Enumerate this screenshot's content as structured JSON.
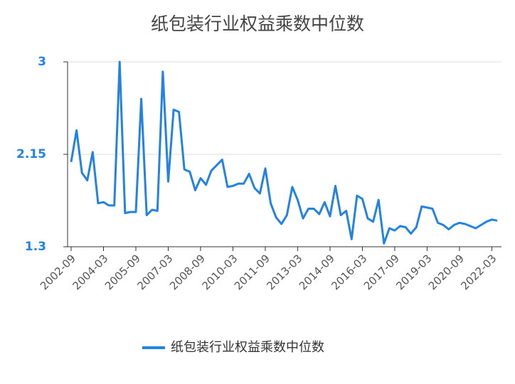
{
  "chart_data": {
    "type": "line",
    "title": "纸包装行业权益乘数中位数",
    "categories": [
      "2002-09",
      null,
      null,
      null,
      null,
      null,
      "2004-03",
      null,
      null,
      null,
      null,
      null,
      "2005-09",
      null,
      null,
      null,
      null,
      null,
      "2007-03",
      null,
      null,
      null,
      null,
      null,
      "2008-09",
      null,
      null,
      null,
      null,
      null,
      "2010-03",
      null,
      null,
      null,
      null,
      null,
      "2011-09",
      null,
      null,
      null,
      null,
      null,
      "2013-03",
      null,
      null,
      null,
      null,
      null,
      "2014-09",
      null,
      null,
      null,
      null,
      null,
      "2016-03",
      null,
      null,
      null,
      null,
      null,
      "2017-09",
      null,
      null,
      null,
      null,
      null,
      "2019-03",
      null,
      null,
      null,
      null,
      null,
      "2020-09",
      null,
      null,
      null,
      null,
      null,
      "2022-03",
      null
    ],
    "series": [
      {
        "name": "纸包装行业权益乘数中位数",
        "color": "#2383e2",
        "values": [
          2.08,
          2.37,
          1.98,
          1.91,
          2.17,
          1.7,
          1.71,
          1.68,
          1.68,
          3.0,
          1.61,
          1.62,
          1.62,
          2.66,
          1.59,
          1.64,
          1.63,
          2.91,
          1.9,
          2.56,
          2.54,
          2.01,
          1.99,
          1.82,
          1.93,
          1.87,
          2.0,
          2.05,
          2.1,
          1.85,
          1.86,
          1.88,
          1.88,
          1.97,
          1.84,
          1.79,
          2.02,
          1.7,
          1.57,
          1.51,
          1.59,
          1.85,
          1.73,
          1.56,
          1.65,
          1.65,
          1.6,
          1.71,
          1.58,
          1.86,
          1.59,
          1.63,
          1.37,
          1.77,
          1.74,
          1.56,
          1.53,
          1.73,
          1.33,
          1.47,
          1.45,
          1.49,
          1.48,
          1.42,
          1.48,
          1.67,
          1.66,
          1.65,
          1.52,
          1.5,
          1.46,
          1.5,
          1.52,
          1.51,
          1.49,
          1.47,
          1.5,
          1.53,
          1.55,
          1.54
        ]
      }
    ],
    "ylim": [
      1.3,
      3
    ],
    "yticks": [
      1.3,
      2.15,
      3
    ],
    "grid": true,
    "legend": "bottom"
  }
}
